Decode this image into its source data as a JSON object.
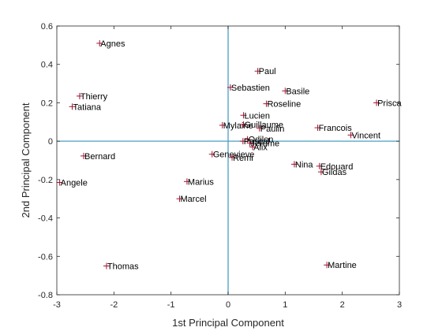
{
  "chart_data": {
    "type": "scatter",
    "xlabel": "1st Principal Component",
    "ylabel": "2nd Principal Component",
    "xlim": [
      -3,
      3
    ],
    "ylim": [
      -0.8,
      0.6
    ],
    "xticks": [
      -3,
      -2,
      -1,
      0,
      1,
      2,
      3
    ],
    "yticks": [
      -0.8,
      -0.6,
      -0.4,
      -0.2,
      0,
      0.2,
      0.4,
      0.6
    ],
    "xtick_labels": [
      "-3",
      "-2",
      "-1",
      "0",
      "1",
      "2",
      "3"
    ],
    "ytick_labels": [
      "-0.8",
      "-0.6",
      "-0.4",
      "-0.2",
      "0",
      "0.2",
      "0.4",
      "0.6"
    ],
    "grid": false,
    "reference_lines": {
      "x": 0,
      "y": 0
    },
    "marker": "+",
    "marker_color": "#a2142f",
    "reference_line_color": "#4a9fc5",
    "points": [
      {
        "label": "Agnes",
        "x": -2.25,
        "y": 0.51
      },
      {
        "label": "Paul",
        "x": 0.52,
        "y": 0.365
      },
      {
        "label": "Thierry",
        "x": -2.6,
        "y": 0.235
      },
      {
        "label": "Sebastien",
        "x": 0.04,
        "y": 0.28
      },
      {
        "label": "Basile",
        "x": 1.0,
        "y": 0.262
      },
      {
        "label": "Tatiana",
        "x": -2.73,
        "y": 0.18
      },
      {
        "label": "Roseline",
        "x": 0.67,
        "y": 0.195
      },
      {
        "label": "Prisca",
        "x": 2.6,
        "y": 0.2
      },
      {
        "label": "Lucien",
        "x": 0.27,
        "y": 0.135
      },
      {
        "label": "Mylaine",
        "x": -0.1,
        "y": 0.083
      },
      {
        "label": "Guillaume",
        "x": 0.27,
        "y": 0.087
      },
      {
        "label": "Paulin",
        "x": 0.55,
        "y": 0.067
      },
      {
        "label": "Francois",
        "x": 1.57,
        "y": 0.07
      },
      {
        "label": "Vincent",
        "x": 2.15,
        "y": 0.032
      },
      {
        "label": "Odilon",
        "x": 0.34,
        "y": 0.01
      },
      {
        "label": "Pascal",
        "x": 0.26,
        "y": 0.0
      },
      {
        "label": "Jerome",
        "x": 0.38,
        "y": -0.01
      },
      {
        "label": "Alix",
        "x": 0.43,
        "y": -0.03
      },
      {
        "label": "Genevieve",
        "x": -0.28,
        "y": -0.068
      },
      {
        "label": "Remi",
        "x": 0.07,
        "y": -0.085
      },
      {
        "label": "Bernard",
        "x": -2.53,
        "y": -0.077
      },
      {
        "label": "Nina",
        "x": 1.16,
        "y": -0.12
      },
      {
        "label": "Edouard",
        "x": 1.6,
        "y": -0.13
      },
      {
        "label": "Gildas",
        "x": 1.63,
        "y": -0.16
      },
      {
        "label": "Marius",
        "x": -0.72,
        "y": -0.21
      },
      {
        "label": "Angele",
        "x": -2.95,
        "y": -0.215
      },
      {
        "label": "Marcel",
        "x": -0.85,
        "y": -0.3
      },
      {
        "label": "Thomas",
        "x": -2.13,
        "y": -0.65
      },
      {
        "label": "Martine",
        "x": 1.73,
        "y": -0.645
      }
    ]
  }
}
